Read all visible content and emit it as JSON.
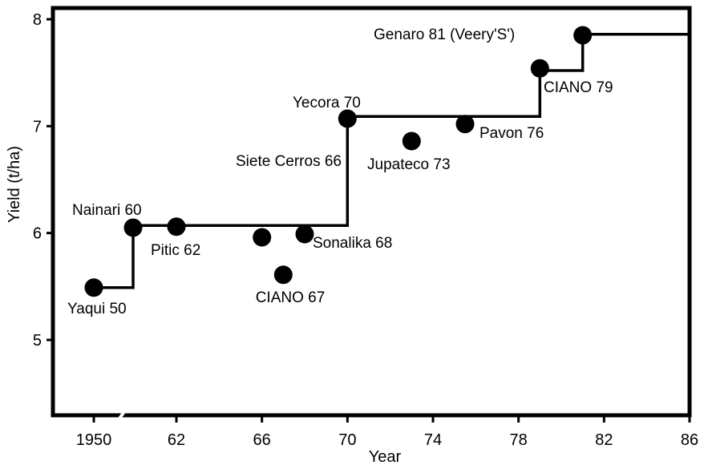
{
  "chart_data": {
    "type": "scatter",
    "title": "",
    "xlabel": "Year",
    "ylabel": "Yield (t/ha)",
    "xlim": [
      1946,
      1986
    ],
    "ylim": [
      4.25,
      8.1
    ],
    "grid": false,
    "x_ticks": [
      {
        "value": 1950,
        "label": "1950"
      },
      {
        "value": 1962,
        "label": "62"
      },
      {
        "value": 1966,
        "label": "66"
      },
      {
        "value": 1970,
        "label": "70"
      },
      {
        "value": 1974,
        "label": "74"
      },
      {
        "value": 1978,
        "label": "78"
      },
      {
        "value": 1982,
        "label": "82"
      },
      {
        "value": 1986,
        "label": "86"
      }
    ],
    "x_axis_break": true,
    "y_ticks": [
      {
        "value": 5,
        "label": "5"
      },
      {
        "value": 6,
        "label": "6"
      },
      {
        "value": 7,
        "label": "7"
      },
      {
        "value": 8,
        "label": "8"
      }
    ],
    "points": [
      {
        "name": "Yaqui 50",
        "year": 1950,
        "yield": 5.49
      },
      {
        "name": "Nainari 60",
        "year": 1960,
        "yield": 6.05
      },
      {
        "name": "Pitic 62",
        "year": 1962,
        "yield": 6.06
      },
      {
        "name": "Siete Cerros 66",
        "year": 1966,
        "yield": 5.96
      },
      {
        "name": "CIANO 67",
        "year": 1967,
        "yield": 5.61
      },
      {
        "name": "Sonalika 68",
        "year": 1968,
        "yield": 5.99
      },
      {
        "name": "Yecora 70",
        "year": 1970,
        "yield": 7.07
      },
      {
        "name": "Jupateco 73",
        "year": 1973,
        "yield": 6.86
      },
      {
        "name": "Pavon 76",
        "year": 1975.5,
        "yield": 7.02
      },
      {
        "name": "CIANO 79",
        "year": 1979,
        "yield": 7.54
      },
      {
        "name": "Genaro 81 (Veery'S')",
        "year": 1981,
        "yield": 7.85
      }
    ],
    "step_line": [
      [
        1950,
        5.49
      ],
      [
        1960,
        5.49
      ],
      [
        1960,
        6.07
      ],
      [
        1970,
        6.07
      ],
      [
        1970,
        7.09
      ],
      [
        1979,
        7.09
      ],
      [
        1979,
        7.52
      ],
      [
        1981,
        7.52
      ],
      [
        1981,
        7.86
      ],
      [
        1986,
        7.86
      ]
    ]
  }
}
